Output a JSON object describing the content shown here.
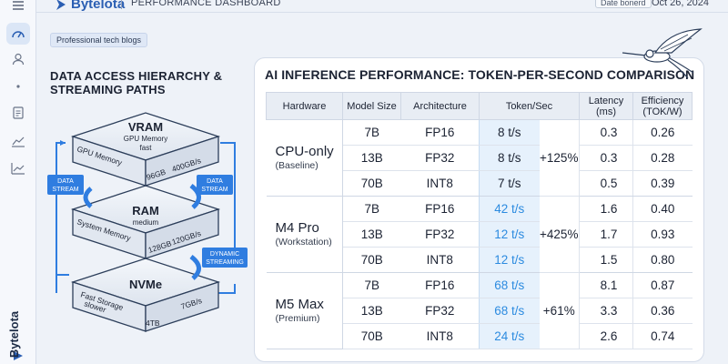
{
  "header": {
    "brand": "Bytelota",
    "dashboard_title": "PERFORMANCE DASHBOARD",
    "date_label": "Date bonerd",
    "date_value": "Oct 26, 2024"
  },
  "sidebar": {
    "icons": [
      "menu-icon",
      "speedometer-icon",
      "user-icon",
      "dot-icon",
      "document-icon",
      "chart-area-icon",
      "chart-line-icon"
    ],
    "brand_vertical": "Bytelota"
  },
  "chip": "Professional tech blogs",
  "left_panel": {
    "title": "DATA ACCESS HIERARCHY & STREAMING PATHS",
    "tiers": [
      {
        "name": "VRAM",
        "desc": "GPU Memory",
        "speed": "fast",
        "side": "GPU Memory",
        "size": "96GB",
        "bw": "400GB/s"
      },
      {
        "name": "RAM",
        "desc": "",
        "speed": "medium",
        "side": "System Memory",
        "size": "128GB",
        "bw": "120GB/s"
      },
      {
        "name": "NVMe",
        "desc": "",
        "speed": "",
        "side": "Fast Storage",
        "side2": "slower",
        "size": "4TB",
        "bw": "7GB/s"
      }
    ],
    "labels": {
      "left_stream_1": "DATA",
      "left_stream_2": "STREAM",
      "right_stream_1": "DATA",
      "right_stream_2": "STREAM",
      "dynamic_1": "DYNAMIC",
      "dynamic_2": "STREAMING"
    },
    "accent": "#2f7de0"
  },
  "table": {
    "title": "AI INFERENCE PERFORMANCE: TOKEN-PER-SECOND COMPARISON",
    "headers": {
      "hardware": "Hardware",
      "model": "Model Size",
      "arch": "Architecture",
      "tok": "Token/Sec",
      "lat": "Latency (ms)",
      "eff1": "Efficiency",
      "eff2": "(TOK/W)"
    },
    "groups": [
      {
        "name": "CPU-only",
        "sub": "(Baseline)",
        "gain": "+125%",
        "rows": [
          {
            "model": "7B",
            "arch": "FP16",
            "tok": "8 t/s",
            "lat": "0.3",
            "eff": "0.26"
          },
          {
            "model": "13B",
            "arch": "FP32",
            "tok": "8 t/s",
            "lat": "0.3",
            "eff": "0.28"
          },
          {
            "model": "70B",
            "arch": "INT8",
            "tok": "7 t/s",
            "lat": "0.5",
            "eff": "0.39"
          }
        ]
      },
      {
        "name": "M4 Pro",
        "sub": "(Workstation)",
        "gain": "+425%",
        "rows": [
          {
            "model": "7B",
            "arch": "FP16",
            "tok": "42 t/s",
            "lat": "1.6",
            "eff": "0.40"
          },
          {
            "model": "13B",
            "arch": "FP32",
            "tok": "12 t/s",
            "lat": "1.7",
            "eff": "0.93"
          },
          {
            "model": "70B",
            "arch": "INT8",
            "tok": "12 t/s",
            "lat": "1.5",
            "eff": "0.80"
          }
        ]
      },
      {
        "name": "M5 Max",
        "sub": "(Premium)",
        "gain": "+61%",
        "rows": [
          {
            "model": "7B",
            "arch": "FP16",
            "tok": "68 t/s",
            "lat": "8.1",
            "eff": "0.87"
          },
          {
            "model": "13B",
            "arch": "FP32",
            "tok": "68 t/s",
            "lat": "3.3",
            "eff": "0.36"
          },
          {
            "model": "70B",
            "arch": "INT8",
            "tok": "24 t/s",
            "lat": "2.6",
            "eff": "0.74"
          }
        ]
      }
    ]
  }
}
